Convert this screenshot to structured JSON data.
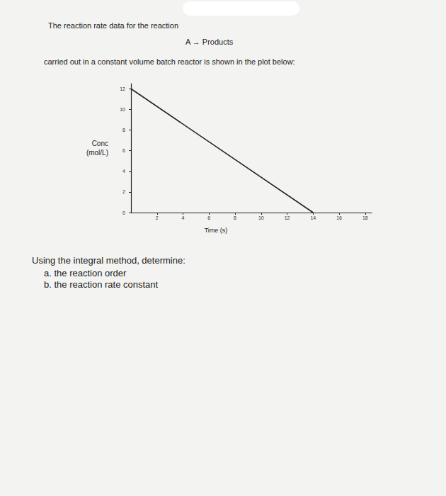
{
  "document": {
    "intro": "The reaction rate data for the reaction",
    "reaction": "A → Products",
    "context": "carried out in a constant volume batch reactor is shown in the plot below:",
    "question": "Using the integral method, determine:",
    "items": [
      "a. the reaction order",
      "b. the reaction rate constant"
    ]
  },
  "chart_data": {
    "type": "line",
    "x": [
      0,
      14
    ],
    "values": [
      12,
      0
    ],
    "color": "#222222",
    "xlabel": "Time (s)",
    "ylabel": "Conc\n(mol/L)",
    "xlim": [
      0,
      18.5
    ],
    "ylim": [
      0,
      12.5
    ],
    "xticks": [
      2,
      4,
      6,
      8,
      10,
      12,
      14,
      16,
      18
    ],
    "yticks": [
      0,
      2,
      4,
      6,
      8,
      10,
      12
    ],
    "grid": false
  }
}
